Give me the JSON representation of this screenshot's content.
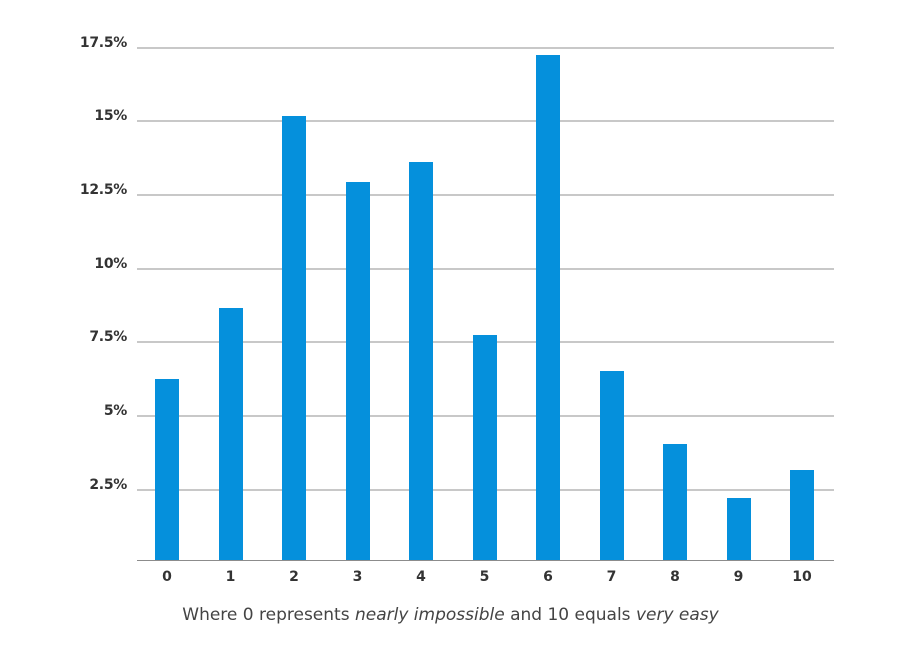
{
  "chart_data": {
    "type": "bar",
    "title": "",
    "xlabel": "Where 0 represents nearly impossible and 10 equals very easy",
    "ylabel": "",
    "categories": [
      "0",
      "1",
      "2",
      "3",
      "4",
      "5",
      "6",
      "7",
      "8",
      "9",
      "10"
    ],
    "values": [
      6.25,
      8.66,
      15.17,
      12.93,
      13.61,
      7.75,
      17.24,
      6.52,
      4.06,
      2.22,
      3.17
    ],
    "unit": "%",
    "ylim": [
      0,
      17.5
    ],
    "yticks": [
      2.5,
      5,
      7.5,
      10,
      12.5,
      15,
      17.5
    ],
    "ytick_labels": [
      "2.5%",
      "5%",
      "7.5%",
      "10%",
      "12.5%",
      "15%",
      "17.5%"
    ],
    "grid": true,
    "legend": null,
    "bar_color": "#0590DC"
  },
  "caption": {
    "part1": "Where 0 represents ",
    "italic1": "nearly impossible",
    "part2": " and 10 equals ",
    "italic2": "very easy"
  },
  "colors": {
    "bar": "#0590DC",
    "gridline": "#c8c8c8",
    "axis": "#8c8c8c",
    "tick_text": "#333333",
    "caption_text": "#444444"
  }
}
